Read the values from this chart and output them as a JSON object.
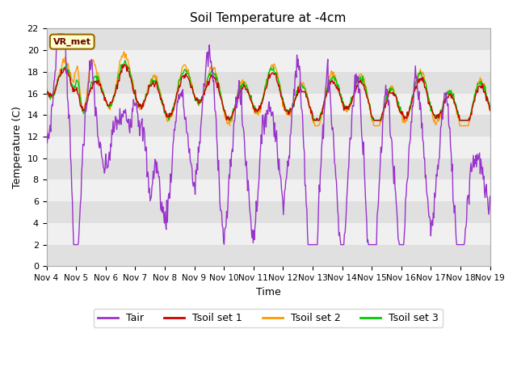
{
  "title": "Soil Temperature at -4cm",
  "xlabel": "Time",
  "ylabel": "Temperature (C)",
  "ylim": [
    0,
    22
  ],
  "annotation": "VR_met",
  "fig_facecolor": "#ffffff",
  "plot_bg_light": "#f0f0f0",
  "plot_bg_dark": "#e0e0e0",
  "line_colors": {
    "Tair": "#9933cc",
    "Tsoil_set1": "#cc0000",
    "Tsoil_set2": "#ff9900",
    "Tsoil_set3": "#00cc00"
  },
  "legend_labels": [
    "Tair",
    "Tsoil set 1",
    "Tsoil set 2",
    "Tsoil set 3"
  ],
  "xtick_labels": [
    "Nov 4",
    "Nov 5",
    "Nov 6",
    "Nov 7",
    "Nov 8",
    "Nov 9",
    "Nov 10",
    "Nov 11",
    "Nov 12",
    "Nov 13",
    "Nov 14",
    "Nov 15",
    "Nov 16",
    "Nov 17",
    "Nov 18",
    "Nov 19"
  ],
  "n_days": 15,
  "pts_per_day": 48
}
